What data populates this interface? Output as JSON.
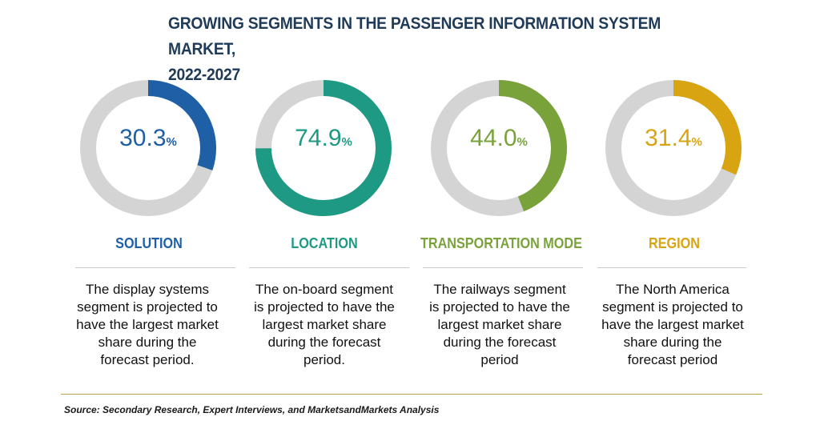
{
  "title_line1": "GROWING SEGMENTS IN THE PASSENGER INFORMATION SYSTEM MARKET,",
  "title_line2": "2022-2027",
  "chart_data": {
    "type": "donut",
    "track_color": "#d4d4d4",
    "items": [
      {
        "category": "SOLUTION",
        "value": 30.3,
        "value_label": "30.3",
        "unit": "%",
        "color": "#1f5fa6",
        "description": "The display systems segment is projected to have the largest market share during the forecast period."
      },
      {
        "category": "LOCATION",
        "value": 74.9,
        "value_label": "74.9",
        "unit": "%",
        "color": "#1e9a84",
        "description": "The on-board segment is projected to have the largest market share during the forecast period."
      },
      {
        "category": "TRANSPORTATION MODE",
        "value": 44.0,
        "value_label": "44.0",
        "unit": "%",
        "color": "#7aa23a",
        "description": "The railways segment is projected to have the largest market share during the forecast period"
      },
      {
        "category": "REGION",
        "value": 31.4,
        "value_label": "31.4",
        "unit": "%",
        "color": "#d8a412",
        "description": "The North America segment is projected to have the largest market share during the forecast period"
      }
    ]
  },
  "source": "Source: Secondary Research, Expert Interviews, and MarketsandMarkets Analysis"
}
